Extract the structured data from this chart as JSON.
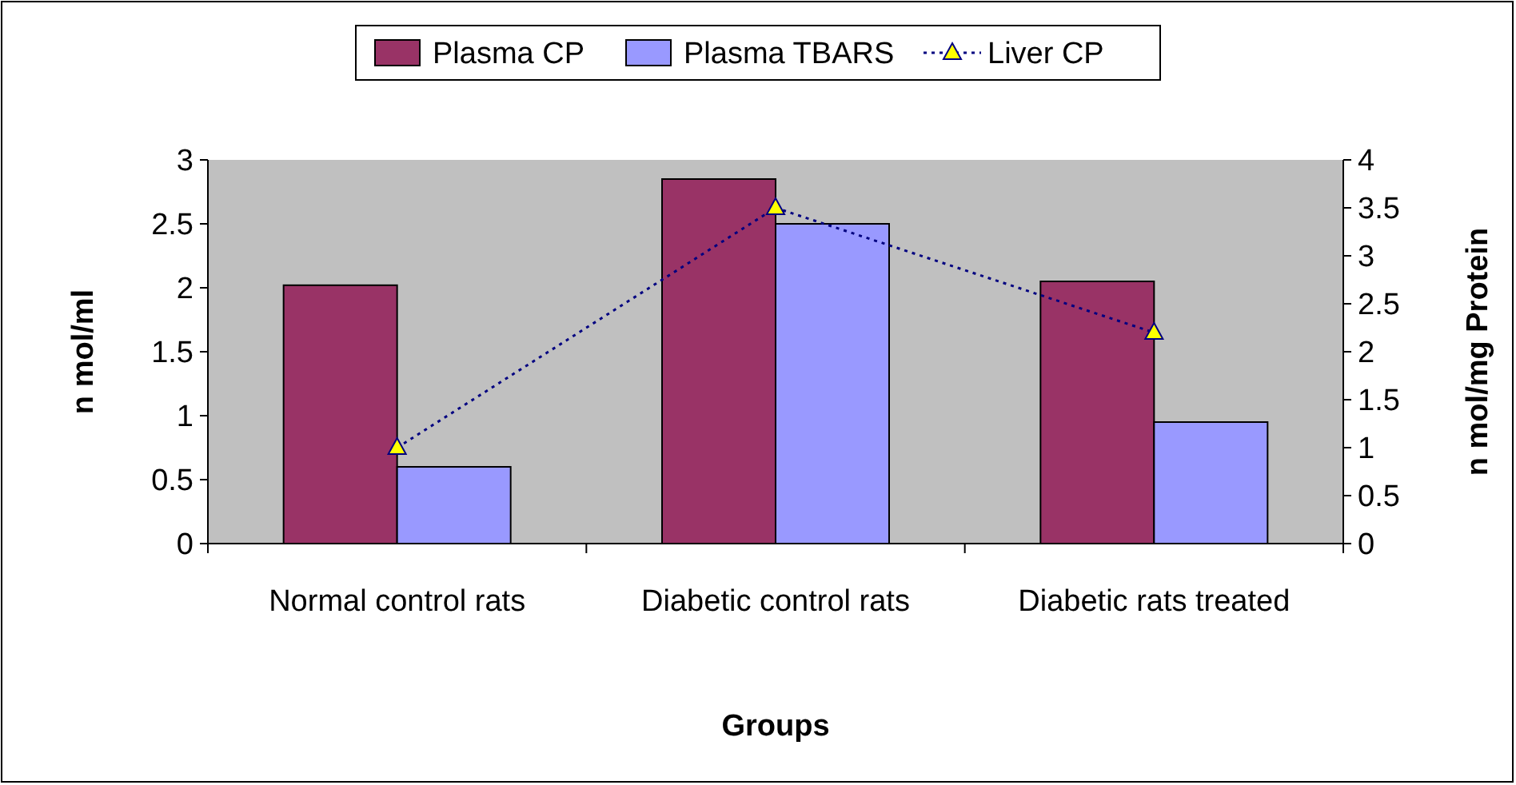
{
  "chart_data": {
    "type": "bar",
    "xlabel": "Groups",
    "ylabel": "n mol/ml",
    "y2label": "n mol/mg Protein",
    "categories": [
      "Normal control rats",
      "Diabetic control rats",
      "Diabetic rats treated"
    ],
    "series": [
      {
        "name": "Plasma CP",
        "color": "#993366",
        "values": [
          2.02,
          2.85,
          2.05
        ]
      },
      {
        "name": "Plasma TBARS",
        "color": "#9999ff",
        "values": [
          0.6,
          2.5,
          0.95
        ]
      },
      {
        "name": "Liver CP",
        "type": "line",
        "axis": "y2",
        "color": "#000080",
        "marker": "triangle",
        "line_style": "dotted",
        "values": [
          1.0,
          3.5,
          2.2
        ]
      }
    ],
    "ylim": [
      0,
      3
    ],
    "yticks": [
      0,
      0.5,
      1,
      1.5,
      2,
      2.5,
      3
    ],
    "y2lim": [
      0,
      4
    ],
    "y2ticks": [
      0,
      0.5,
      1,
      1.5,
      2,
      2.5,
      3,
      3.5,
      4
    ],
    "grid": false,
    "legend": "top"
  }
}
